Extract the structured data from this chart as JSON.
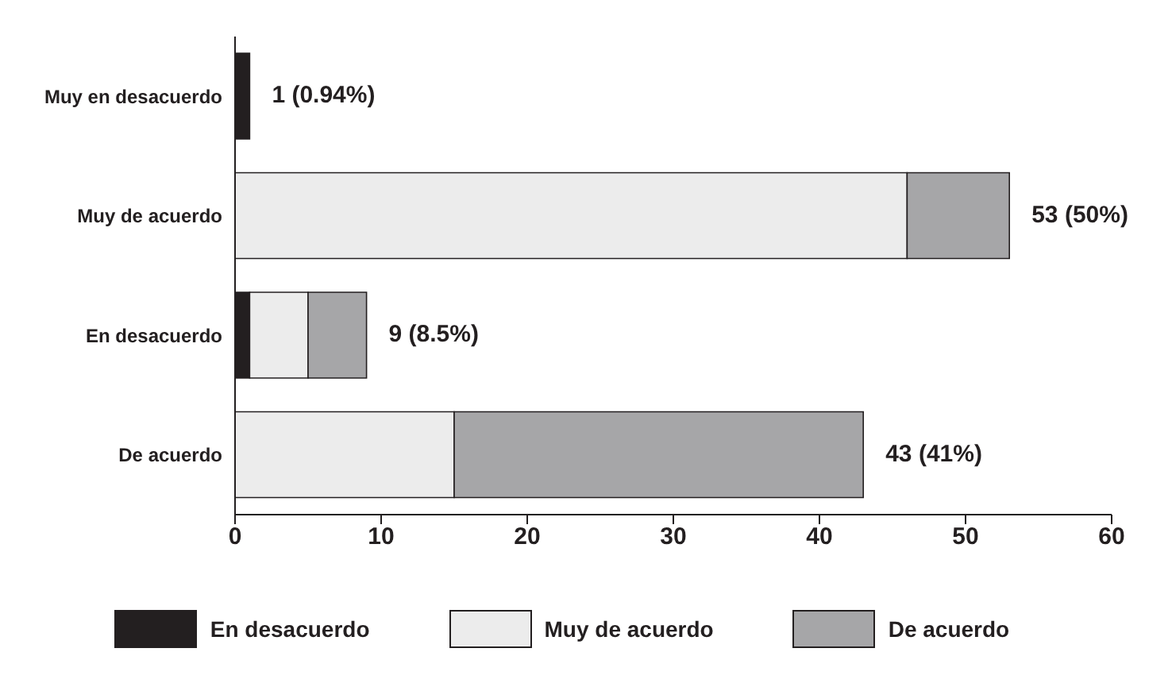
{
  "chart_data": {
    "type": "bar",
    "orientation": "horizontal",
    "stacked": true,
    "categories": [
      "Muy en desacuerdo",
      "Muy de acuerdo",
      "En desacuerdo",
      "De acuerdo"
    ],
    "series": [
      {
        "name": "En desacuerdo",
        "color": "#231f20",
        "values": [
          1,
          0,
          1,
          0
        ]
      },
      {
        "name": "Muy de acuerdo",
        "color": "#ececec",
        "values": [
          0,
          46,
          4,
          15
        ]
      },
      {
        "name": "De acuerdo",
        "color": "#a6a6a8",
        "values": [
          0,
          7,
          4,
          28
        ]
      }
    ],
    "totals": [
      "1 (0.94%)",
      "53 (50%)",
      "9 (8.5%)",
      "43 (41%)"
    ],
    "xlim": [
      0,
      60
    ],
    "xticks": [
      0,
      10,
      20,
      30,
      40,
      50,
      60
    ],
    "grid": false,
    "legend": "bottom"
  }
}
